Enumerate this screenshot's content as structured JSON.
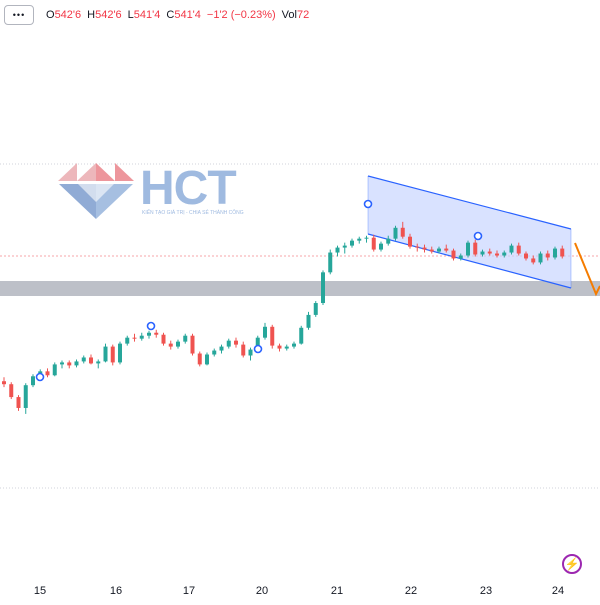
{
  "legend": {
    "menu_label": "•••",
    "o_label": "O",
    "o_value": "542'6",
    "h_label": "H",
    "h_value": "542'6",
    "l_label": "L",
    "l_value": "541'4",
    "c_label": "C",
    "c_value": "541'4",
    "change": "−1'2 (−0.23%)",
    "vol_label": "Vol",
    "vol_value": "72"
  },
  "watermark": {
    "brand": "HCT",
    "tagline": "KIẾN TẠO GIÁ TRỊ - CHIA SẺ THÀNH CÔNG"
  },
  "colors": {
    "up": "#26a69a",
    "down": "#ef5350",
    "channel_line": "#2962ff",
    "channel_fill": "#c9d6ff",
    "zone": "#b2b5be",
    "arrow": "#f57c00",
    "accent": "#9c27b0"
  },
  "chart_data": {
    "type": "candlestick",
    "x_ticks": [
      "15",
      "16",
      "17",
      "20",
      "21",
      "22",
      "23",
      "24"
    ],
    "grid": false,
    "shapes": [
      "descending channel",
      "horizontal zone",
      "forecast arrow down"
    ],
    "candles": [
      [
        546.2,
        547.0,
        545.0,
        545.6
      ],
      [
        545.6,
        546.0,
        542.6,
        543.0
      ],
      [
        543.0,
        543.4,
        540.2,
        540.8
      ],
      [
        540.8,
        545.8,
        539.6,
        545.4
      ],
      [
        545.4,
        547.6,
        545.0,
        547.2
      ],
      [
        547.2,
        548.6,
        546.6,
        548.2
      ],
      [
        548.2,
        548.8,
        547.0,
        547.4
      ],
      [
        547.4,
        550.0,
        547.2,
        549.6
      ],
      [
        549.6,
        550.4,
        548.8,
        550.0
      ],
      [
        550.0,
        550.4,
        548.8,
        549.4
      ],
      [
        549.4,
        550.6,
        549.0,
        550.2
      ],
      [
        550.2,
        551.4,
        549.8,
        551.0
      ],
      [
        551.0,
        551.6,
        549.6,
        549.8
      ],
      [
        549.8,
        550.6,
        548.8,
        550.2
      ],
      [
        550.2,
        553.8,
        550.0,
        553.2
      ],
      [
        553.2,
        553.6,
        549.4,
        550.0
      ],
      [
        550.0,
        554.2,
        549.6,
        553.8
      ],
      [
        553.8,
        555.4,
        553.4,
        555.0
      ],
      [
        555.0,
        555.8,
        554.2,
        554.8
      ],
      [
        554.8,
        556.0,
        554.4,
        555.4
      ],
      [
        555.4,
        556.4,
        554.8,
        556.0
      ],
      [
        556.0,
        556.6,
        555.0,
        555.6
      ],
      [
        555.6,
        556.0,
        553.4,
        553.8
      ],
      [
        553.8,
        554.4,
        552.6,
        553.2
      ],
      [
        553.2,
        554.6,
        552.8,
        554.2
      ],
      [
        554.2,
        555.8,
        553.8,
        555.4
      ],
      [
        555.4,
        555.8,
        551.4,
        551.8
      ],
      [
        551.8,
        552.2,
        549.2,
        549.6
      ],
      [
        549.6,
        552.0,
        549.4,
        551.6
      ],
      [
        551.6,
        552.8,
        551.2,
        552.4
      ],
      [
        552.4,
        553.6,
        551.8,
        553.2
      ],
      [
        553.2,
        554.8,
        552.8,
        554.4
      ],
      [
        554.4,
        555.0,
        553.0,
        553.6
      ],
      [
        553.6,
        554.2,
        551.0,
        551.4
      ],
      [
        551.4,
        553.0,
        550.4,
        552.6
      ],
      [
        552.6,
        555.4,
        552.2,
        555.0
      ],
      [
        555.0,
        558.0,
        554.6,
        557.2
      ],
      [
        557.2,
        557.6,
        552.8,
        553.4
      ],
      [
        553.4,
        553.8,
        552.2,
        552.8
      ],
      [
        552.8,
        553.6,
        552.4,
        553.2
      ],
      [
        553.2,
        554.2,
        552.8,
        553.8
      ],
      [
        553.8,
        557.4,
        553.6,
        557.0
      ],
      [
        557.0,
        560.2,
        556.6,
        559.6
      ],
      [
        559.6,
        562.4,
        559.2,
        562.0
      ],
      [
        562.0,
        568.6,
        561.6,
        568.2
      ],
      [
        568.2,
        572.8,
        567.8,
        572.2
      ],
      [
        572.2,
        573.6,
        571.4,
        573.2
      ],
      [
        573.2,
        574.2,
        572.0,
        573.6
      ],
      [
        573.6,
        575.0,
        573.2,
        574.6
      ],
      [
        574.6,
        575.4,
        574.0,
        575.0
      ],
      [
        575.0,
        575.6,
        574.2,
        575.2
      ],
      [
        575.2,
        575.8,
        572.4,
        572.8
      ],
      [
        572.8,
        574.4,
        572.4,
        574.0
      ],
      [
        574.0,
        575.6,
        573.6,
        575.0
      ],
      [
        575.0,
        577.6,
        574.6,
        577.2
      ],
      [
        577.2,
        578.4,
        575.0,
        575.4
      ],
      [
        575.4,
        576.0,
        573.0,
        573.4
      ],
      [
        573.4,
        574.0,
        572.4,
        573.2
      ],
      [
        573.2,
        573.8,
        572.2,
        572.8
      ],
      [
        572.8,
        573.4,
        572.0,
        572.4
      ],
      [
        572.4,
        573.4,
        572.0,
        573.0
      ],
      [
        573.0,
        573.8,
        572.2,
        572.6
      ],
      [
        572.6,
        573.0,
        570.6,
        571.0
      ],
      [
        571.0,
        572.0,
        570.6,
        571.6
      ],
      [
        571.6,
        574.6,
        571.2,
        574.2
      ],
      [
        574.2,
        574.8,
        571.4,
        571.8
      ],
      [
        571.8,
        572.8,
        571.4,
        572.4
      ],
      [
        572.4,
        573.0,
        571.6,
        572.0
      ],
      [
        572.0,
        572.6,
        571.2,
        571.6
      ],
      [
        571.6,
        572.6,
        571.2,
        572.2
      ],
      [
        572.2,
        574.0,
        571.8,
        573.6
      ],
      [
        573.6,
        574.2,
        571.6,
        572.0
      ],
      [
        572.0,
        572.4,
        570.6,
        571.0
      ],
      [
        571.0,
        571.6,
        569.8,
        570.2
      ],
      [
        570.2,
        572.4,
        569.8,
        572.0
      ],
      [
        572.0,
        572.6,
        570.6,
        571.2
      ],
      [
        571.2,
        573.4,
        570.8,
        573.0
      ],
      [
        573.0,
        573.6,
        571.0,
        571.4
      ]
    ]
  }
}
